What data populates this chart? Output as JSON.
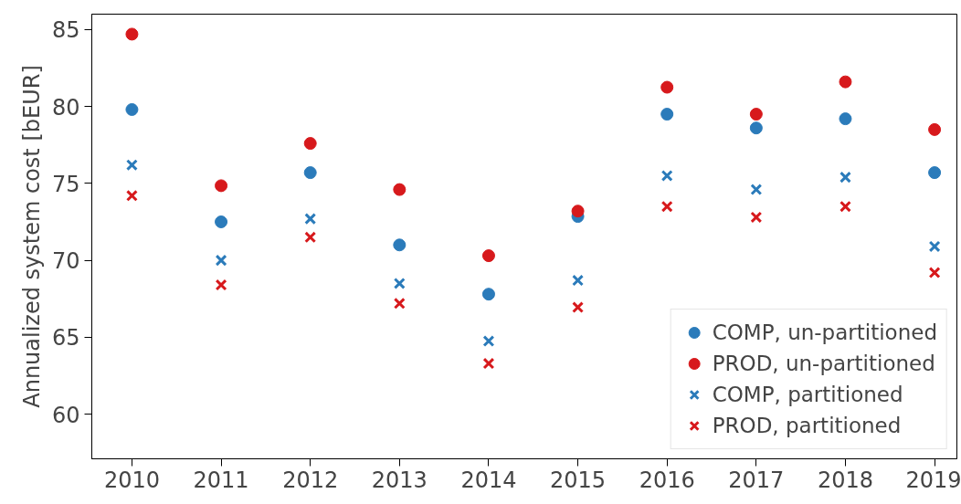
{
  "chart_data": {
    "type": "scatter",
    "ylabel": "Annualized system cost [bEUR]",
    "categories": [
      "2010",
      "2011",
      "2012",
      "2013",
      "2014",
      "2015",
      "2016",
      "2017",
      "2018",
      "2019"
    ],
    "series": [
      {
        "name": "COMP, un-partitioned",
        "color": "#2b7bba",
        "marker": "circle",
        "values": [
          79.8,
          72.5,
          75.7,
          71.0,
          67.8,
          72.85,
          79.5,
          78.6,
          79.2,
          75.7
        ]
      },
      {
        "name": "PROD, un-partitioned",
        "color": "#d7191c",
        "marker": "circle",
        "values": [
          84.7,
          74.85,
          77.6,
          74.6,
          70.3,
          73.2,
          81.25,
          79.5,
          81.6,
          78.5
        ]
      },
      {
        "name": "COMP, partitioned",
        "color": "#2b7bba",
        "marker": "cross",
        "values": [
          76.2,
          70.0,
          72.7,
          68.5,
          64.75,
          68.7,
          75.5,
          74.6,
          75.4,
          70.9
        ]
      },
      {
        "name": "PROD, partitioned",
        "color": "#d7191c",
        "marker": "cross",
        "values": [
          74.2,
          68.4,
          71.5,
          67.2,
          63.3,
          66.95,
          73.5,
          72.8,
          73.5,
          69.2
        ]
      }
    ],
    "ylim": [
      57.1,
      86.0
    ],
    "yticks": [
      60,
      65,
      70,
      75,
      80,
      85
    ],
    "grid": false,
    "legend": "bottom right"
  }
}
